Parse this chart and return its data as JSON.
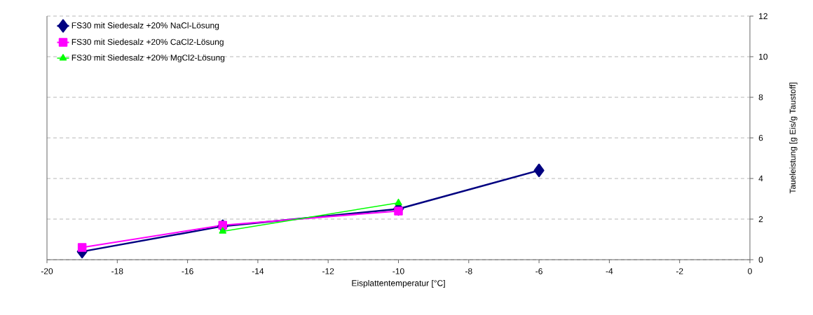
{
  "chart_data": {
    "type": "line",
    "xlabel": "Eisplattentemperatur [°C]",
    "ylabel": "Taueleistung [g Eis/g Taustoff]",
    "series": [
      {
        "name": "FS30 mit Siedesalz +20% NaCl-Lösung",
        "color": "#000080",
        "marker": "diamond",
        "x": [
          -19,
          -15,
          -10,
          -6
        ],
        "values": [
          0.4,
          1.65,
          2.5,
          4.4
        ]
      },
      {
        "name": "FS30 mit Siedesalz +20% CaCl2-Lösung",
        "color": "#ff00ff",
        "marker": "square",
        "x": [
          -19,
          -15,
          -10
        ],
        "values": [
          0.6,
          1.7,
          2.4
        ]
      },
      {
        "name": "FS30 mit Siedesalz +20% MgCl2-Lösung",
        "color": "#00ff00",
        "marker": "triangle",
        "x": [
          -15,
          -10
        ],
        "values": [
          1.4,
          2.8
        ]
      }
    ],
    "xlim": [
      -20,
      0
    ],
    "xticks": [
      -20,
      -18,
      -16,
      -14,
      -12,
      -10,
      -8,
      -6,
      -4,
      -2,
      0
    ],
    "ylim": [
      0,
      12
    ],
    "yticks": [
      0,
      2,
      4,
      6,
      8,
      10,
      12
    ],
    "grid": "y",
    "legend": "top left",
    "line_style": "solid"
  }
}
